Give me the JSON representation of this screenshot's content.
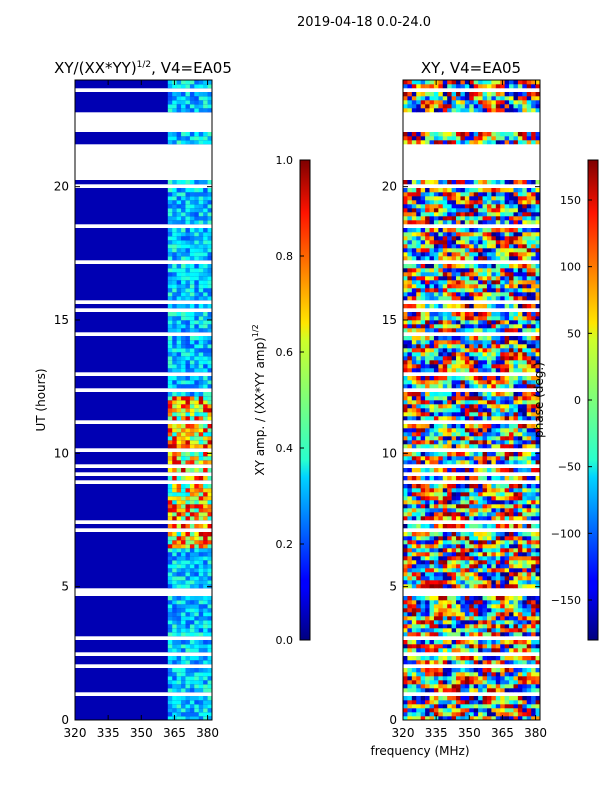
{
  "chart_data": [
    {
      "type": "heatmap",
      "title": "XY/(XX*YY)",
      "title_sup": "1/2",
      "title_suffix": ", V4=EA05",
      "xlabel": "",
      "ylabel": "UT (hours)",
      "xlim": [
        320,
        382
      ],
      "ylim": [
        0,
        24
      ],
      "xticks": [
        "320",
        "335",
        "350",
        "365",
        "380"
      ],
      "xtick_values": [
        320,
        335,
        350,
        365,
        380
      ],
      "yticks": [
        "0",
        "5",
        "10",
        "15",
        "20"
      ],
      "ytick_values": [
        0,
        5,
        10,
        15,
        20
      ],
      "colorbar": {
        "label": "XY amp. / (XX*YY amp)",
        "label_sup": "1/2",
        "range": [
          0.0,
          1.0
        ],
        "ticks": [
          "0.0",
          "0.2",
          "0.4",
          "0.6",
          "0.8",
          "1.0"
        ],
        "tick_values": [
          0.0,
          0.2,
          0.4,
          0.6,
          0.8,
          1.0
        ],
        "colormap": "jet"
      }
    },
    {
      "type": "heatmap",
      "title": "XY, V4=EA05",
      "xlabel": "frequency (MHz)",
      "ylabel": "",
      "xlim": [
        320,
        382
      ],
      "ylim": [
        0,
        24
      ],
      "xticks": [
        "320",
        "335",
        "350",
        "365",
        "380"
      ],
      "xtick_values": [
        320,
        335,
        350,
        365,
        380
      ],
      "yticks": [
        "0",
        "5",
        "10",
        "15",
        "20"
      ],
      "ytick_values": [
        0,
        5,
        10,
        15,
        20
      ],
      "colorbar": {
        "label": "phase (deg.)",
        "range": [
          -180,
          180
        ],
        "ticks": [
          "−150",
          "−100",
          "−50",
          "0",
          "50",
          "100",
          "150"
        ],
        "tick_values": [
          -150,
          -100,
          -50,
          0,
          50,
          100,
          150
        ],
        "colormap": "jet"
      }
    }
  ],
  "suptitle": "2019-04-18 0.0-24.0",
  "blank_time_ranges_hours": [
    [
      20.2,
      21.4
    ],
    [
      22.0,
      22.8
    ]
  ],
  "colors": {
    "axes": "#000000",
    "background": "#ffffff"
  }
}
